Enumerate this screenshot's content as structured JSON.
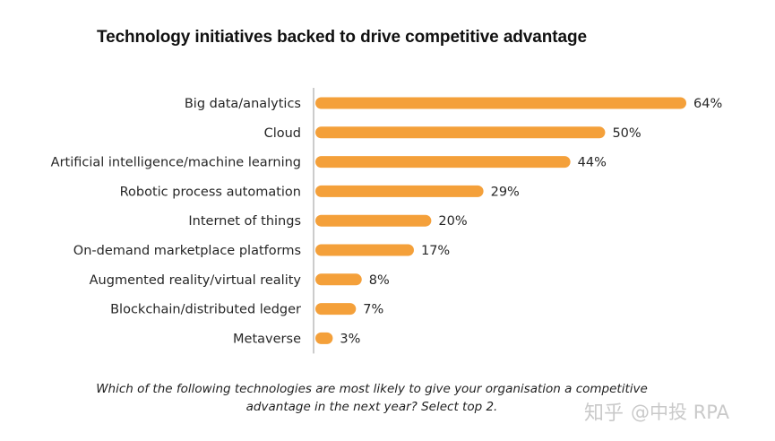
{
  "chart_data": {
    "type": "bar",
    "orientation": "horizontal",
    "title": "Technology initiatives backed to drive competitive advantage",
    "categories": [
      "Big data/analytics",
      "Cloud",
      "Artificial intelligence/machine learning",
      "Robotic process automation",
      "Internet of things",
      "On-demand marketplace platforms",
      "Augmented reality/virtual reality",
      "Blockchain/distributed ledger",
      "Metaverse"
    ],
    "values": [
      64,
      50,
      44,
      29,
      20,
      17,
      8,
      7,
      3
    ],
    "value_labels": [
      "64%",
      "50%",
      "44%",
      "29%",
      "20%",
      "17%",
      "8%",
      "7%",
      "3%"
    ],
    "unit": "%",
    "xlim": [
      0,
      64
    ],
    "grid": false,
    "legend": "none",
    "bar_color": "#F4A03A",
    "axis_color": "#9A9A9A"
  },
  "caption": {
    "line1": "Which of the following technologies are most likely to give your organisation a competitive",
    "line2": "advantage in the next year? Select top 2."
  },
  "watermark": {
    "brand": "知乎",
    "handle": "@中投 RPA"
  }
}
